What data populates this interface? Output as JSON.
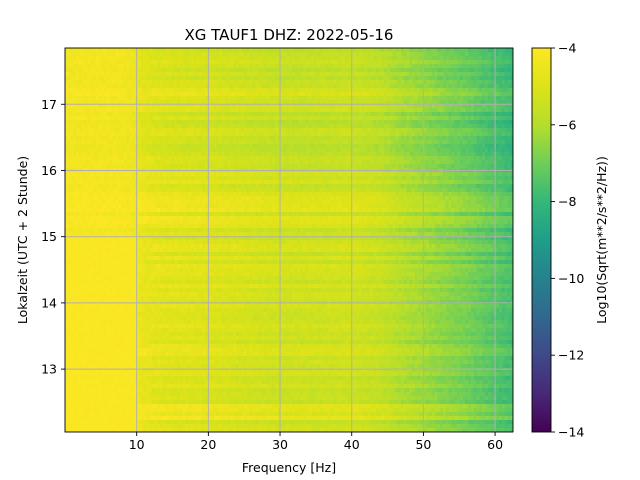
{
  "chart_data": {
    "type": "heatmap",
    "title": "XG TAUF1  DHZ: 2022-05-16",
    "xlabel": "Frequency [Hz]",
    "ylabel": "Lokalzeit (UTC + 2 Stunde)",
    "colorbar_label": "Log10(Sqrt(m**2/s**2/Hz))",
    "colormap": "viridis",
    "xlim": [
      0,
      62.5
    ],
    "ylim": [
      17.85,
      12.05
    ],
    "x_ticks": [
      10,
      20,
      30,
      40,
      50,
      60
    ],
    "y_ticks": [
      13,
      14,
      15,
      16,
      17
    ],
    "colorbar_range": [
      -14,
      -4
    ],
    "colorbar_ticks": [
      -4,
      -6,
      -8,
      -10,
      -12,
      -14
    ],
    "colorbar_tick_labels": [
      "−4",
      "−6",
      "−8",
      "−10",
      "−12",
      "−14"
    ],
    "grid": true,
    "grid_color": "#b0b0b0",
    "frequency_profile": [
      {
        "x": 0,
        "z": -4.1
      },
      {
        "x": 0.5,
        "z": -4.3
      },
      {
        "x": 1.5,
        "z": -4.25
      },
      {
        "x": 8,
        "z": -4.3
      },
      {
        "x": 9.5,
        "z": -4.4
      },
      {
        "x": 11,
        "z": -4.7
      },
      {
        "x": 15,
        "z": -4.9
      },
      {
        "x": 20,
        "z": -5.0
      },
      {
        "x": 25,
        "z": -5.2
      },
      {
        "x": 30,
        "z": -5.35
      },
      {
        "x": 35,
        "z": -5.4
      },
      {
        "x": 40,
        "z": -5.35
      },
      {
        "x": 44,
        "z": -5.6
      },
      {
        "x": 47,
        "z": -6.0
      },
      {
        "x": 50,
        "z": -6.3
      },
      {
        "x": 53,
        "z": -6.6
      },
      {
        "x": 56,
        "z": -6.9
      },
      {
        "x": 59,
        "z": -7.3
      },
      {
        "x": 62.5,
        "z": -7.7
      }
    ],
    "bright_low_frequency_band": {
      "x_end": 10,
      "y_start": 12.05,
      "y_end": 15.0,
      "z": -4.05
    },
    "time_bands": [
      {
        "y_start": 12.25,
        "y_end": 12.45,
        "z_offset": 0.4
      },
      {
        "y_start": 13.2,
        "y_end": 13.3,
        "z_offset": 0.5
      },
      {
        "y_start": 15.2,
        "y_end": 15.3,
        "z_offset": 0.6
      },
      {
        "y_start": 15.35,
        "y_end": 15.7,
        "z_offset": 0.4
      },
      {
        "y_start": 16.2,
        "y_end": 16.9,
        "z_offset": -0.3
      },
      {
        "y_start": 17.25,
        "y_end": 17.85,
        "z_offset": -0.2
      }
    ]
  }
}
